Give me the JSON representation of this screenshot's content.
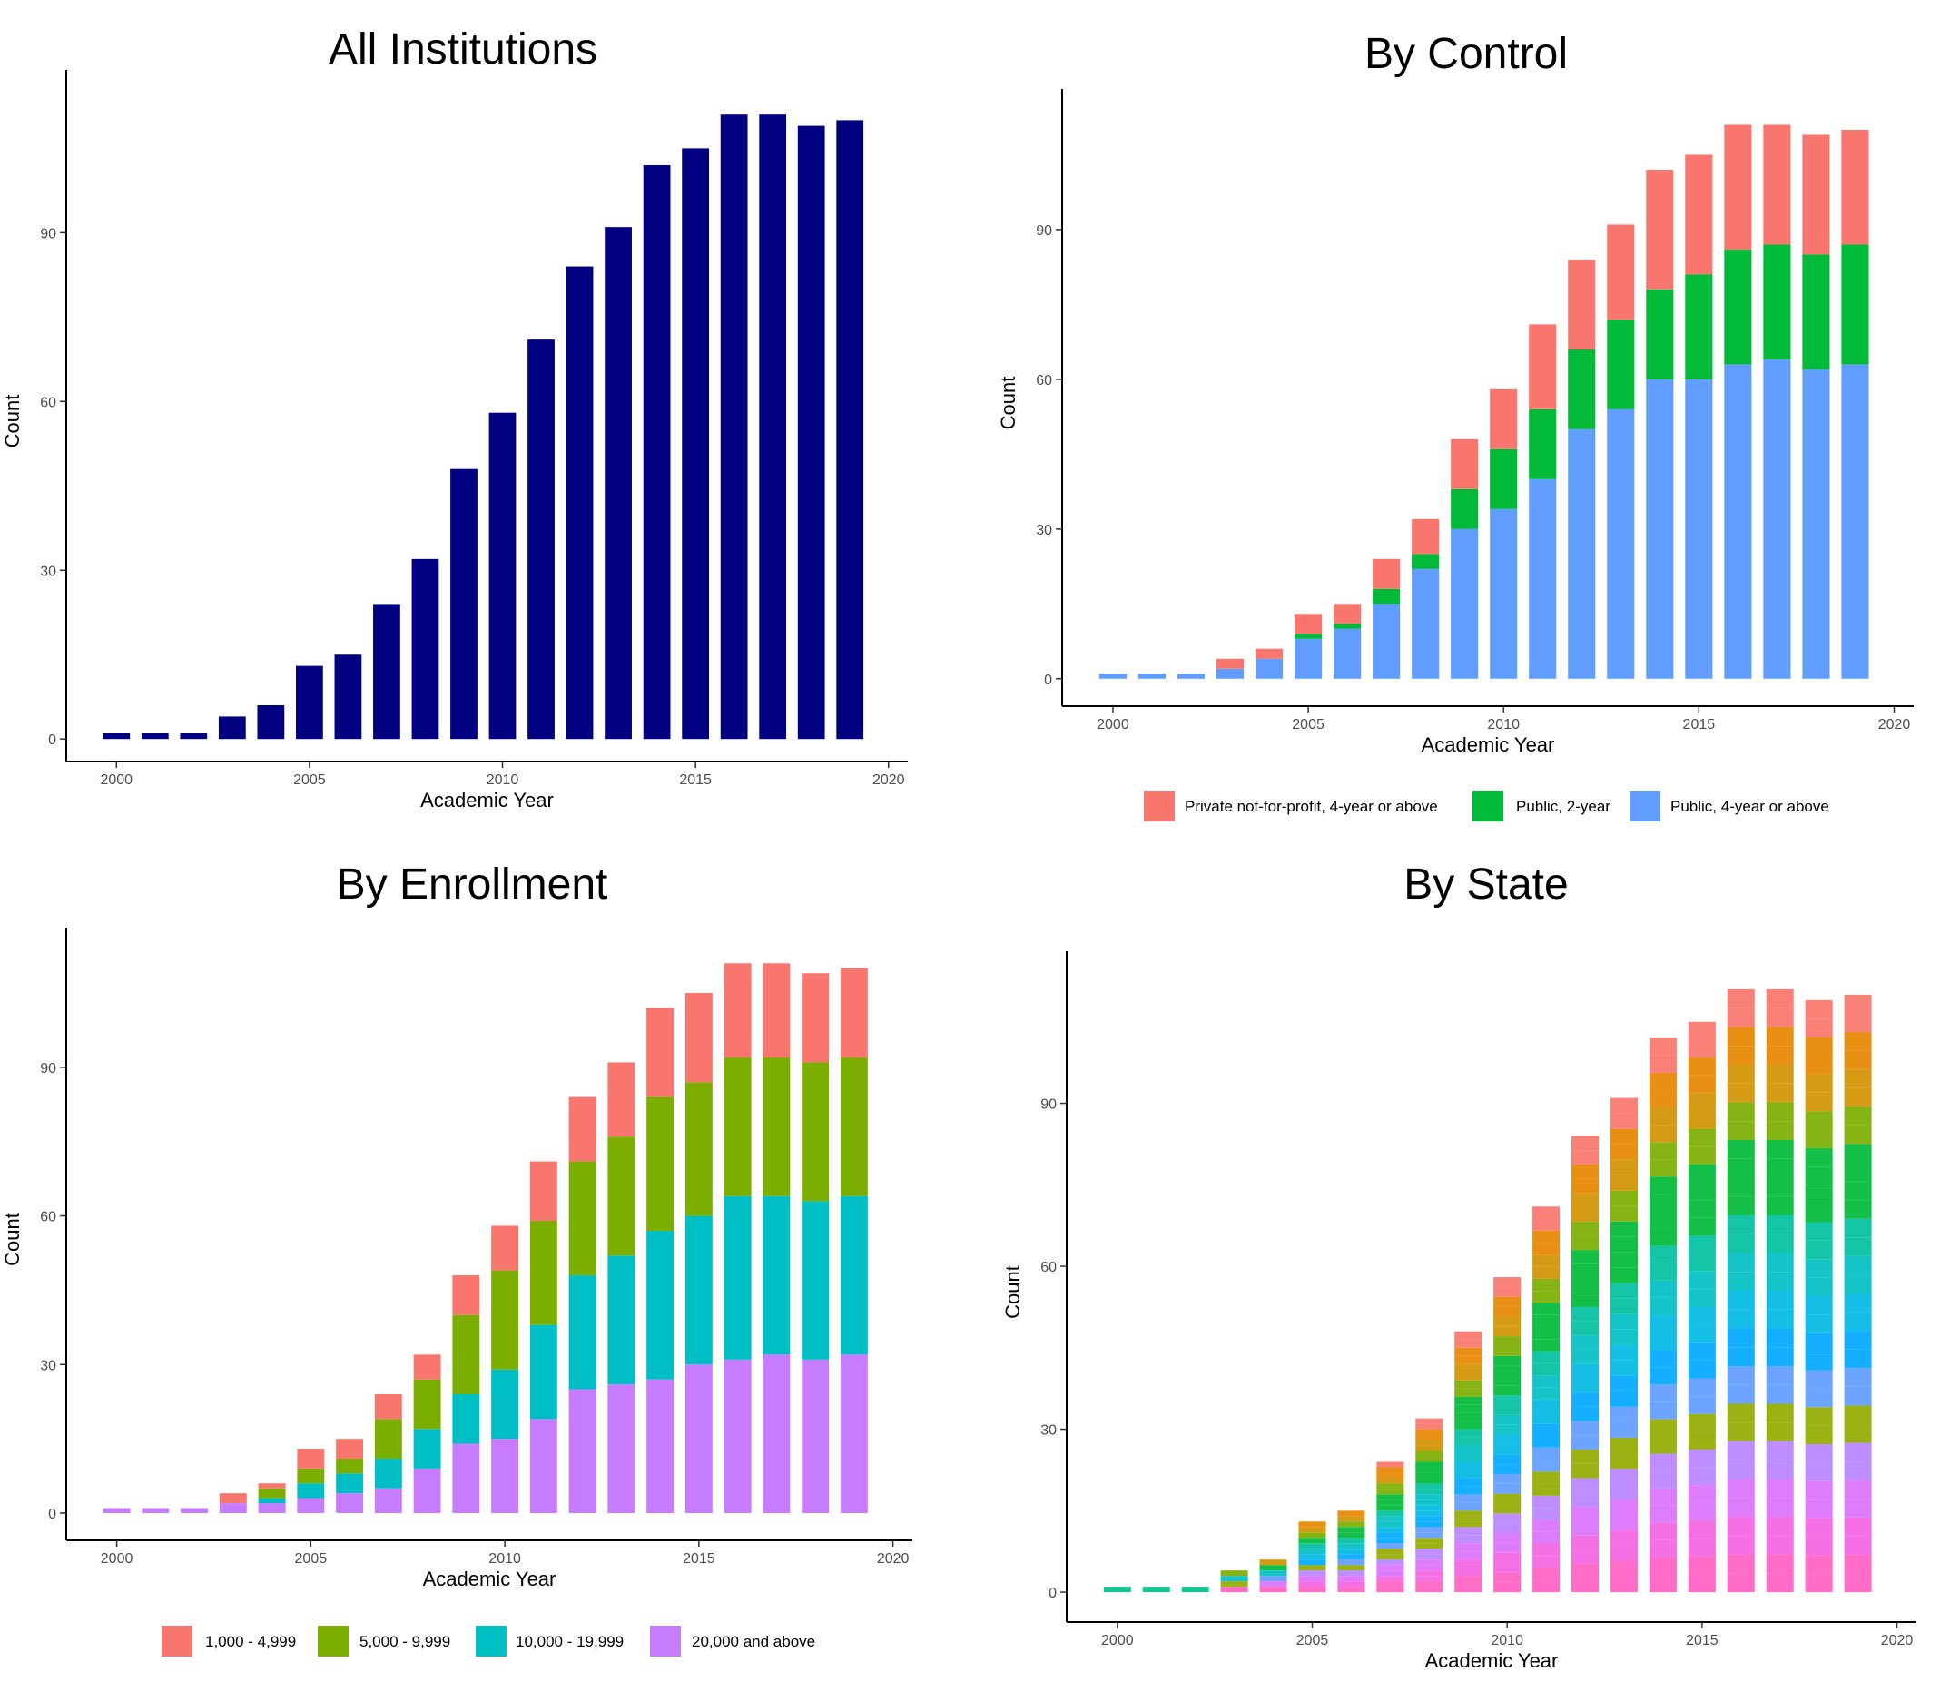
{
  "chart_data": [
    {
      "id": "all",
      "type": "bar",
      "title": "All Institutions",
      "xlabel": "Academic Year",
      "ylabel": "Count",
      "x": [
        2000,
        2001,
        2002,
        2003,
        2004,
        2005,
        2006,
        2007,
        2008,
        2009,
        2010,
        2011,
        2012,
        2013,
        2014,
        2015,
        2016,
        2017,
        2018,
        2019
      ],
      "xticks": [
        2000,
        2005,
        2010,
        2015,
        2020
      ],
      "yticks": [
        0,
        30,
        60,
        90
      ],
      "xlim": [
        1998.7,
        2020.5
      ],
      "ylim": [
        -4,
        117
      ],
      "grid": false,
      "series": [
        {
          "values": [
            1,
            1,
            1,
            4,
            6,
            13,
            15,
            24,
            32,
            48,
            58,
            71,
            84,
            91,
            102,
            105,
            111,
            111,
            109,
            110
          ],
          "color": "#000080"
        }
      ]
    },
    {
      "id": "control",
      "type": "bar",
      "stacked": true,
      "title": "By Control",
      "xlabel": "Academic Year",
      "ylabel": "Count",
      "x": [
        2000,
        2001,
        2002,
        2003,
        2004,
        2005,
        2006,
        2007,
        2008,
        2009,
        2010,
        2011,
        2012,
        2013,
        2014,
        2015,
        2016,
        2017,
        2018,
        2019
      ],
      "xticks": [
        2000,
        2005,
        2010,
        2015,
        2020
      ],
      "yticks": [
        0,
        30,
        60,
        90
      ],
      "xlim": [
        1998.7,
        2020.5
      ],
      "ylim": [
        -5.5,
        116
      ],
      "grid": false,
      "legend_position": "bottom",
      "series": [
        {
          "name": "Public, 4-year or above",
          "color": "#619CFF",
          "values": [
            1,
            1,
            1,
            2,
            4,
            8,
            10,
            15,
            22,
            30,
            34,
            40,
            50,
            54,
            60,
            60,
            63,
            64,
            62,
            63
          ]
        },
        {
          "name": "Public, 2-year",
          "color": "#00BA38",
          "values": [
            0,
            0,
            0,
            0,
            0,
            1,
            1,
            3,
            3,
            8,
            12,
            14,
            16,
            18,
            18,
            21,
            23,
            23,
            23,
            24
          ]
        },
        {
          "name": "Private not-for-profit, 4-year or above",
          "color": "#F8766D",
          "values": [
            0,
            0,
            0,
            2,
            2,
            4,
            4,
            6,
            7,
            10,
            12,
            17,
            18,
            19,
            24,
            24,
            25,
            24,
            24,
            23
          ]
        }
      ],
      "legend_order": [
        "Private not-for-profit, 4-year or above",
        "Public, 2-year",
        "Public, 4-year or above"
      ]
    },
    {
      "id": "enrollment",
      "type": "bar",
      "stacked": true,
      "title": "By Enrollment",
      "xlabel": "Academic Year",
      "ylabel": "Count",
      "x": [
        2000,
        2001,
        2002,
        2003,
        2004,
        2005,
        2006,
        2007,
        2008,
        2009,
        2010,
        2011,
        2012,
        2013,
        2014,
        2015,
        2016,
        2017,
        2018,
        2019
      ],
      "xticks": [
        2000,
        2005,
        2010,
        2015,
        2020
      ],
      "yticks": [
        0,
        30,
        60,
        90
      ],
      "xlim": [
        1998.7,
        2020.5
      ],
      "ylim": [
        -5.5,
        116
      ],
      "grid": false,
      "legend_position": "bottom",
      "series": [
        {
          "name": "20,000 and above",
          "color": "#C77CFF",
          "values": [
            1,
            1,
            1,
            2,
            2,
            3,
            4,
            5,
            9,
            14,
            15,
            19,
            25,
            26,
            27,
            30,
            31,
            32,
            31,
            32
          ]
        },
        {
          "name": "10,000 - 19,999",
          "color": "#00BFC4",
          "values": [
            0,
            0,
            0,
            0,
            1,
            3,
            4,
            6,
            8,
            10,
            14,
            19,
            23,
            26,
            30,
            30,
            33,
            32,
            32,
            32
          ]
        },
        {
          "name": "5,000 - 9,999",
          "color": "#7CAE00",
          "values": [
            0,
            0,
            0,
            0,
            2,
            3,
            3,
            8,
            10,
            16,
            20,
            21,
            23,
            24,
            27,
            27,
            28,
            28,
            28,
            28
          ]
        },
        {
          "name": "1,000 - 4,999",
          "color": "#F8766D",
          "values": [
            0,
            0,
            0,
            2,
            1,
            4,
            4,
            5,
            5,
            8,
            9,
            12,
            13,
            15,
            18,
            18,
            19,
            19,
            18,
            18
          ]
        }
      ],
      "legend_order": [
        "1,000 - 4,999",
        "5,000 - 9,999",
        "10,000 - 19,999",
        "20,000 and above"
      ]
    },
    {
      "id": "state",
      "type": "bar",
      "stacked": true,
      "title": "By State",
      "xlabel": "Academic Year",
      "ylabel": "Count",
      "x": [
        2000,
        2001,
        2002,
        2003,
        2004,
        2005,
        2006,
        2007,
        2008,
        2009,
        2010,
        2011,
        2012,
        2013,
        2014,
        2015,
        2016,
        2017,
        2018,
        2019
      ],
      "xticks": [
        2000,
        2005,
        2010,
        2015,
        2020
      ],
      "yticks": [
        0,
        30,
        60,
        90
      ],
      "xlim": [
        1998.7,
        2020.5
      ],
      "ylim": [
        -5.5,
        116
      ],
      "grid": false,
      "totals": [
        1,
        1,
        1,
        4,
        6,
        13,
        15,
        24,
        32,
        48,
        58,
        71,
        84,
        91,
        102,
        105,
        111,
        111,
        109,
        110
      ],
      "palette": [
        "#FF61C3",
        "#F564E3",
        "#DB72FB",
        "#B983FF",
        "#93AA00",
        "#619CFF",
        "#00A9FF",
        "#00B9E3",
        "#00BFC4",
        "#00C19F",
        "#00BA38",
        "#00BA38",
        "#7CAE00",
        "#D39200",
        "#E58700",
        "#F8766D"
      ],
      "legend_shown": false
    }
  ]
}
